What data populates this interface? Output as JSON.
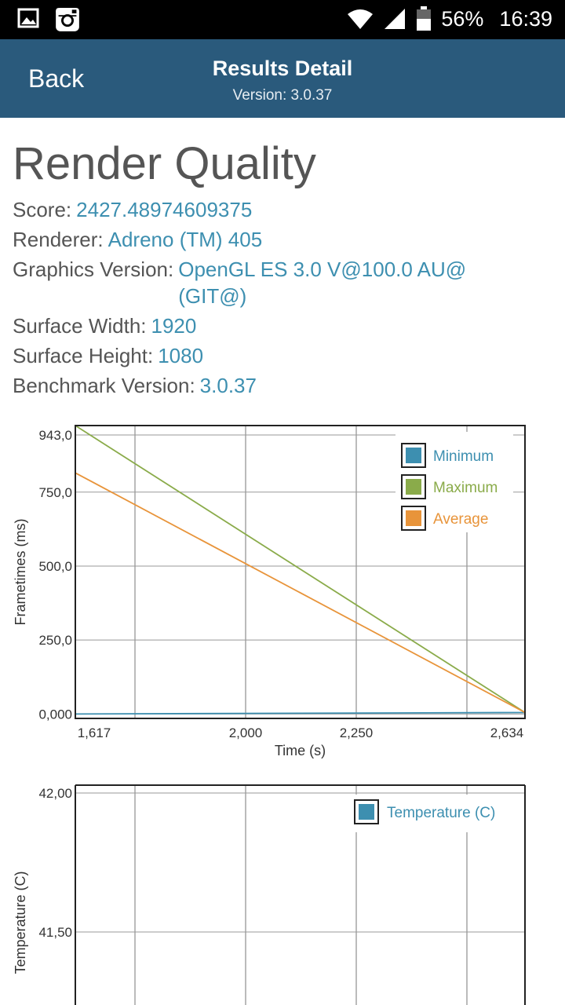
{
  "status_bar": {
    "battery": "56%",
    "time": "16:39",
    "icons": [
      "image-icon",
      "instagram-icon",
      "wifi-icon",
      "signal-icon",
      "battery-icon"
    ]
  },
  "app_bar": {
    "back_label": "Back",
    "title": "Results Detail",
    "subtitle": "Version: 3.0.37",
    "background_color": "#2a5a7c"
  },
  "heading": "Render Quality",
  "details": [
    {
      "label": "Score:",
      "value": "2427.48974609375"
    },
    {
      "label": "Renderer:",
      "value": "Adreno (TM) 405"
    },
    {
      "label": "Graphics Version:",
      "value": "OpenGL ES 3.0 V@100.0 AU@ (GIT@)"
    },
    {
      "label": "Surface Width:",
      "value": "1920"
    },
    {
      "label": "Surface Height:",
      "value": "1080"
    },
    {
      "label": "Benchmark Version:",
      "value": "3.0.37"
    }
  ],
  "value_color": "#3d8fb0",
  "chart_data": [
    {
      "type": "line",
      "title": "",
      "xlabel": "Time (s)",
      "ylabel": "Frametimes (ms)",
      "x_ticks": [
        "1,617",
        "2,000",
        "2,250",
        "2,634"
      ],
      "y_ticks": [
        "943,0",
        "750,0",
        "500,0",
        "250,0",
        "0,000"
      ],
      "xlim": [
        1617,
        2634
      ],
      "ylim": [
        0,
        943
      ],
      "legend_position": "top-right",
      "grid": true,
      "series": [
        {
          "name": "Minimum",
          "color": "#3d8fb0",
          "x": [
            1617,
            2634
          ],
          "y": [
            0,
            5
          ]
        },
        {
          "name": "Maximum",
          "color": "#8aab4a",
          "x": [
            1617,
            2634
          ],
          "y": [
            975,
            5
          ]
        },
        {
          "name": "Average",
          "color": "#e8943a",
          "x": [
            1617,
            2634
          ],
          "y": [
            815,
            5
          ]
        }
      ]
    },
    {
      "type": "line",
      "title": "",
      "xlabel": "",
      "ylabel": "Temperature (C)",
      "y_ticks": [
        "42,00",
        "41,50"
      ],
      "ylim": [
        41.2,
        42.0
      ],
      "legend_position": "top-right",
      "grid": true,
      "series": [
        {
          "name": "Temperature (C)",
          "color": "#3d8fb0",
          "x": [],
          "y": []
        }
      ]
    }
  ]
}
